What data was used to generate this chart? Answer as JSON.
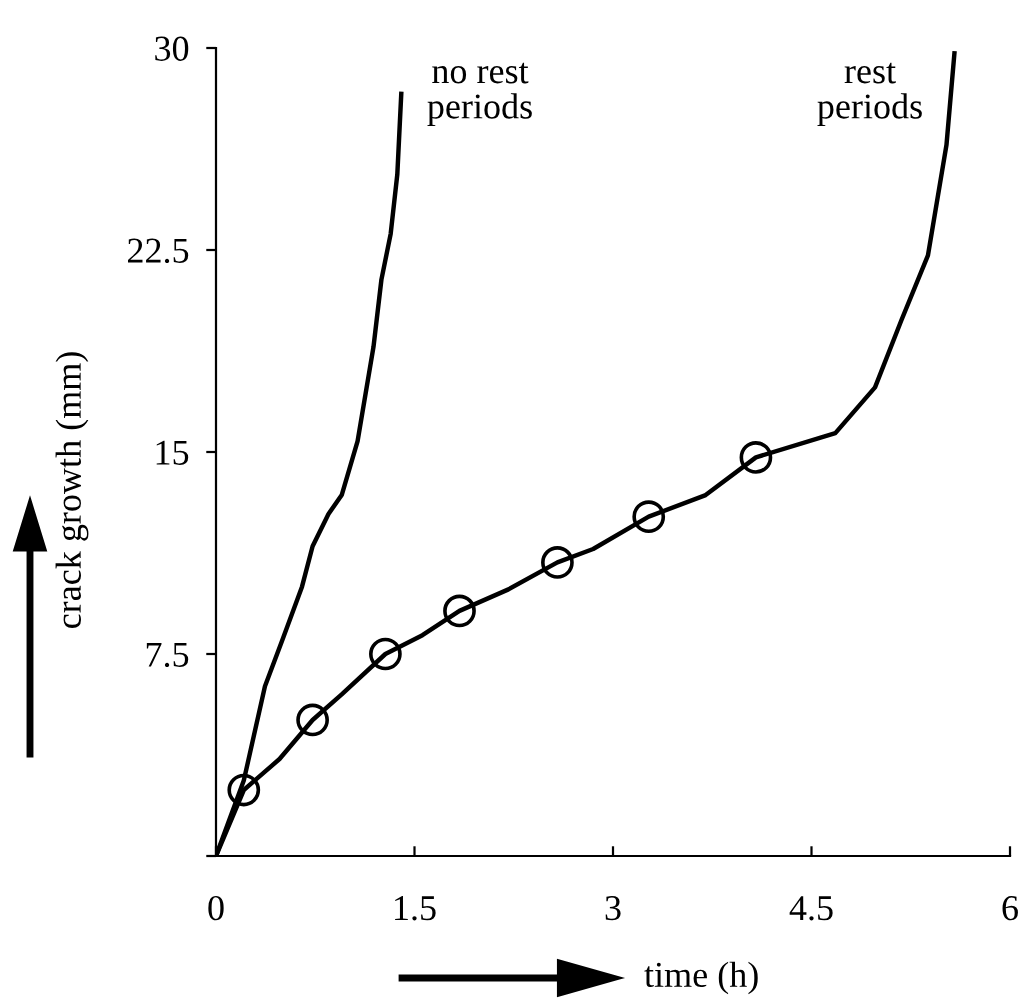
{
  "chart_data": {
    "type": "line",
    "xlabel": "time (h)",
    "ylabel": "crack growth (mm)",
    "xlim": [
      0,
      6
    ],
    "ylim": [
      0,
      30
    ],
    "xticks": [
      0,
      1.5,
      3,
      4.5,
      6
    ],
    "yticks": [
      {
        "value": 0,
        "label": null
      },
      7.5,
      15,
      22.5,
      30
    ],
    "grid": false,
    "legend": false,
    "series": [
      {
        "color": "#000000",
        "x": [
          0,
          0.21,
          0.37,
          0.5,
          0.65,
          0.73,
          0.85,
          0.95,
          1.07,
          1.19,
          1.25,
          1.32,
          1.37,
          1.4
        ],
        "values": [
          0,
          2.8,
          6.3,
          8.0,
          10.0,
          11.5,
          12.7,
          13.4,
          15.4,
          18.9,
          21.4,
          23.1,
          25.3,
          28.3
        ]
      },
      {
        "color": "#000000",
        "x": [
          0,
          0.21,
          0.48,
          0.73,
          0.95,
          1.28,
          1.56,
          1.84,
          2.21,
          2.58,
          2.85,
          3.27,
          3.7,
          4.08,
          4.68,
          4.98,
          5.18,
          5.38,
          5.52,
          5.58
        ],
        "values": [
          0,
          2.45,
          3.6,
          5.05,
          6.0,
          7.5,
          8.2,
          9.1,
          9.9,
          10.9,
          11.4,
          12.6,
          13.4,
          14.8,
          15.7,
          17.4,
          19.9,
          22.3,
          26.4,
          29.8
        ]
      },
      {
        "type": "scatter",
        "marker": "circle",
        "color": "#000000",
        "x": [
          0.21,
          0.73,
          1.28,
          1.84,
          2.58,
          3.27,
          4.08
        ],
        "values": [
          2.45,
          5.05,
          7.5,
          9.1,
          10.9,
          12.6,
          14.8
        ]
      }
    ],
    "annotations": [
      "no rest\nperiods",
      "rest\nperiods"
    ]
  }
}
